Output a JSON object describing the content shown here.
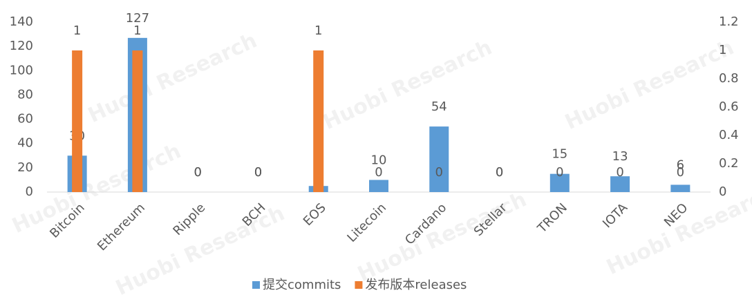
{
  "chart_data": {
    "type": "bar",
    "watermark": "Huobi Research",
    "categories": [
      "Bitcoin",
      "Ethereum",
      "Ripple",
      "BCH",
      "EOS",
      "Litecoin",
      "Cardano",
      "Stellar",
      "TRON",
      "IOTA",
      "NEO"
    ],
    "series": [
      {
        "name": "提交commits",
        "color": "#5b9bd5",
        "values": [
          30,
          127,
          0,
          0,
          5,
          10,
          54,
          0,
          15,
          13,
          6
        ]
      },
      {
        "name": "发布版本releases",
        "color": "#ed7d31",
        "axis": "y2",
        "values": [
          1,
          1,
          0,
          0,
          1,
          0,
          0,
          0,
          0,
          0,
          0
        ]
      }
    ],
    "ylim": [
      0,
      140
    ],
    "yticks": [
      0,
      20,
      40,
      60,
      80,
      100,
      120,
      140
    ],
    "y2lim": [
      0,
      1.2
    ],
    "y2ticks": [
      0,
      0.2,
      0.4,
      0.6,
      0.8,
      1,
      1.2
    ],
    "legend": "bottom"
  }
}
